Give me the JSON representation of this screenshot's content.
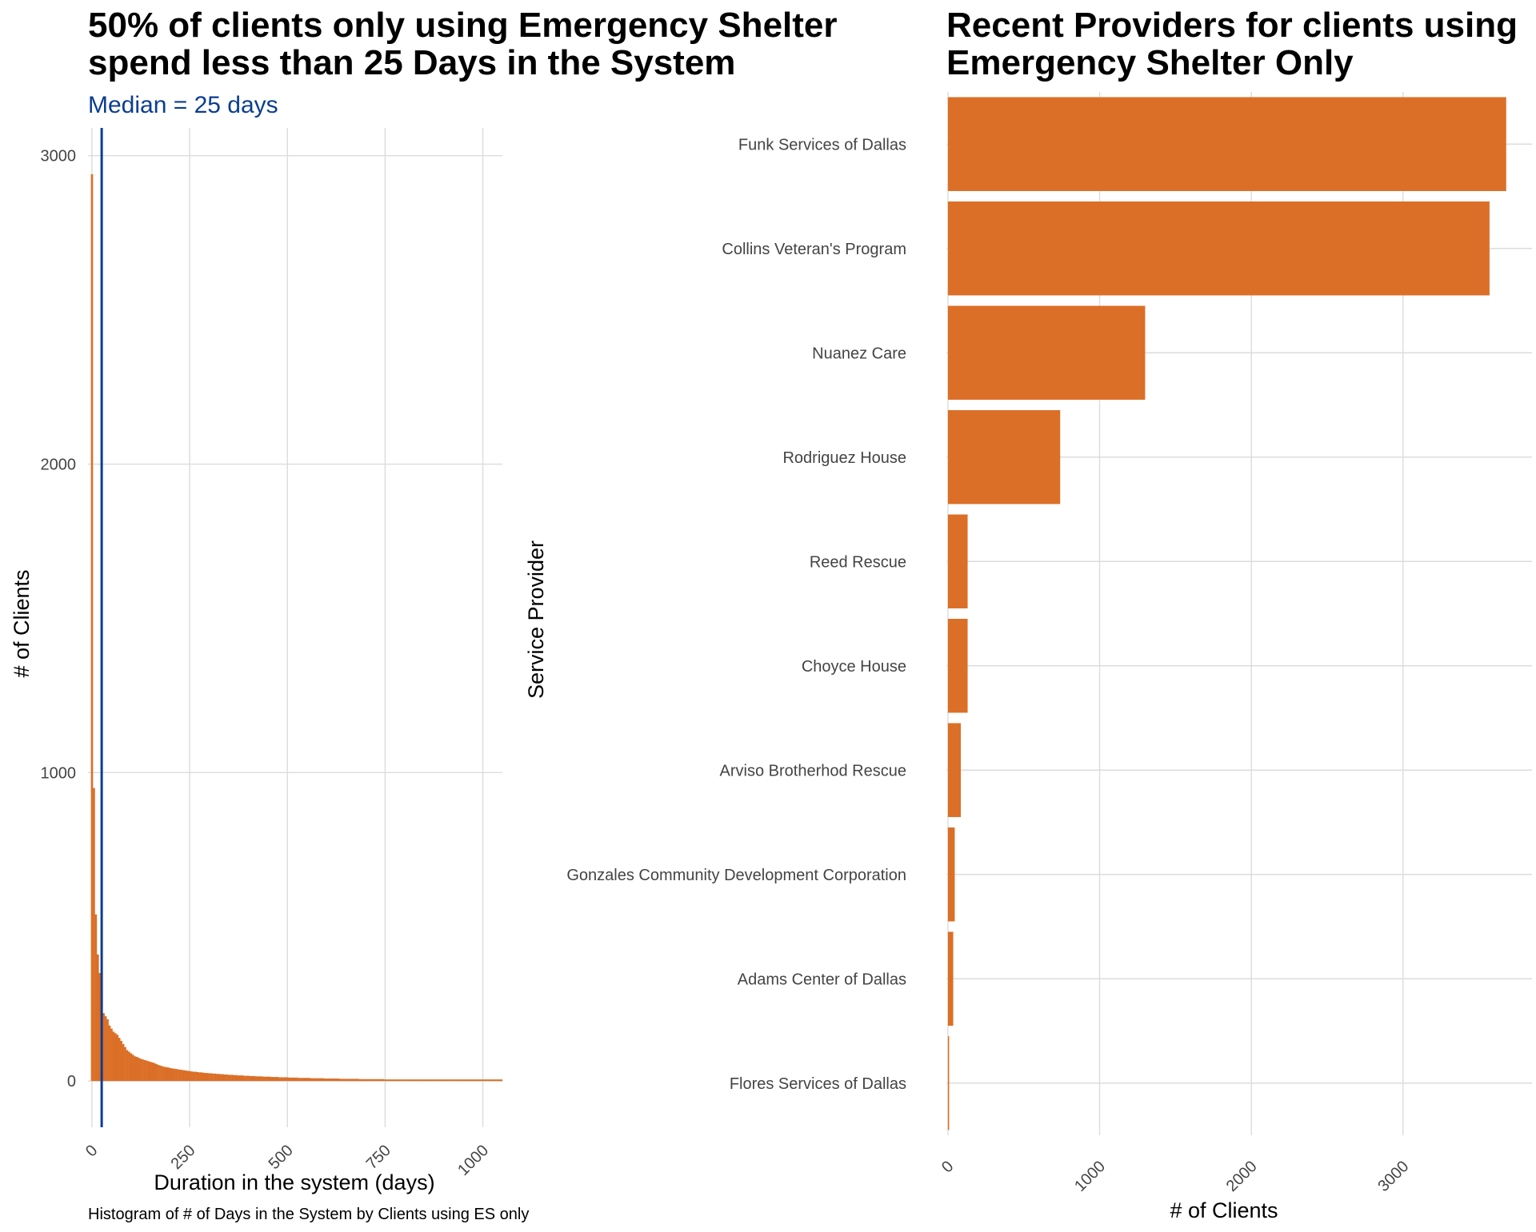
{
  "colors": {
    "bar": "#DB6F27",
    "median_line": "#0B3D91",
    "grid": "#dcdcdc"
  },
  "chart_data": [
    {
      "type": "bar",
      "kind": "histogram",
      "title_lines": [
        "50% of clients only using Emergency Shelter",
        "spend less than 25 Days in the System"
      ],
      "subtitle": "Median = 25 days",
      "median": 25,
      "xlabel": "Duration in the system (days)",
      "ylabel": "# of Clients",
      "caption": "Histogram of # of Days in the System by Clients using ES only",
      "x_ticks": [
        "0",
        "250",
        "500",
        "750",
        "1000"
      ],
      "y_ticks": [
        "0",
        "1000",
        "2000",
        "3000"
      ],
      "xlim": [
        -10,
        1050
      ],
      "ylim": [
        -150,
        3090
      ],
      "bin_width": 5,
      "bins_start": -2.5,
      "values": [
        2940,
        950,
        540,
        410,
        350,
        280,
        220,
        210,
        200,
        180,
        170,
        160,
        155,
        150,
        140,
        130,
        120,
        110,
        100,
        95,
        90,
        85,
        80,
        78,
        75,
        72,
        70,
        68,
        66,
        64,
        62,
        60,
        58,
        55,
        52,
        50,
        48,
        46,
        45,
        44,
        42,
        41,
        40,
        39,
        38,
        37,
        36,
        35,
        34,
        33,
        32,
        31,
        30,
        30,
        29,
        28,
        28,
        27,
        26,
        26,
        25,
        25,
        24,
        24,
        23,
        23,
        22,
        22,
        21,
        21,
        20,
        20,
        20,
        19,
        19,
        18,
        18,
        18,
        17,
        17,
        17,
        16,
        16,
        16,
        15,
        15,
        15,
        15,
        14,
        14,
        14,
        14,
        13,
        13,
        13,
        13,
        12,
        12,
        12,
        12,
        12,
        11,
        11,
        11,
        11,
        11,
        10,
        10,
        10,
        10,
        10,
        10,
        9,
        9,
        9,
        9,
        9,
        9,
        9,
        8,
        8,
        8,
        8,
        8,
        8,
        8,
        8,
        7,
        7,
        7,
        7,
        7,
        7,
        7,
        7,
        7,
        7,
        6,
        6,
        6,
        6,
        6,
        6,
        6,
        6,
        6,
        6,
        6,
        6,
        6,
        5,
        5,
        5,
        5,
        5,
        5,
        5,
        5,
        5,
        5,
        5,
        5,
        5,
        5,
        5,
        5,
        5,
        5,
        5,
        5,
        5,
        5,
        5,
        5,
        5,
        5,
        5,
        5,
        5,
        5,
        5,
        5,
        5,
        5,
        5,
        5,
        5,
        5,
        5,
        5,
        5,
        5,
        5,
        5,
        5,
        5,
        5,
        5,
        5,
        5,
        5,
        5,
        5,
        5,
        5,
        5,
        5,
        5,
        5,
        5,
        5
      ]
    },
    {
      "type": "bar",
      "orientation": "horizontal",
      "title_lines": [
        "Recent Providers for clients using",
        "Emergency Shelter Only"
      ],
      "xlabel": "# of Clients",
      "ylabel": "Service Provider",
      "x_ticks": [
        "0",
        "1000",
        "2000",
        "3000"
      ],
      "xlim": [
        -10,
        3850
      ],
      "categories": [
        "Funk Services of Dallas",
        "Collins Veteran's Program",
        "Nuanez Care",
        "Rodriguez House",
        "Reed Rescue",
        "Choyce House",
        "Arviso Brotherhod Rescue",
        "Gonzales Community Development Corporation",
        "Adams Center of Dallas",
        "Flores Services of Dallas"
      ],
      "values": [
        3680,
        3570,
        1300,
        740,
        130,
        130,
        85,
        45,
        35,
        8
      ]
    }
  ]
}
